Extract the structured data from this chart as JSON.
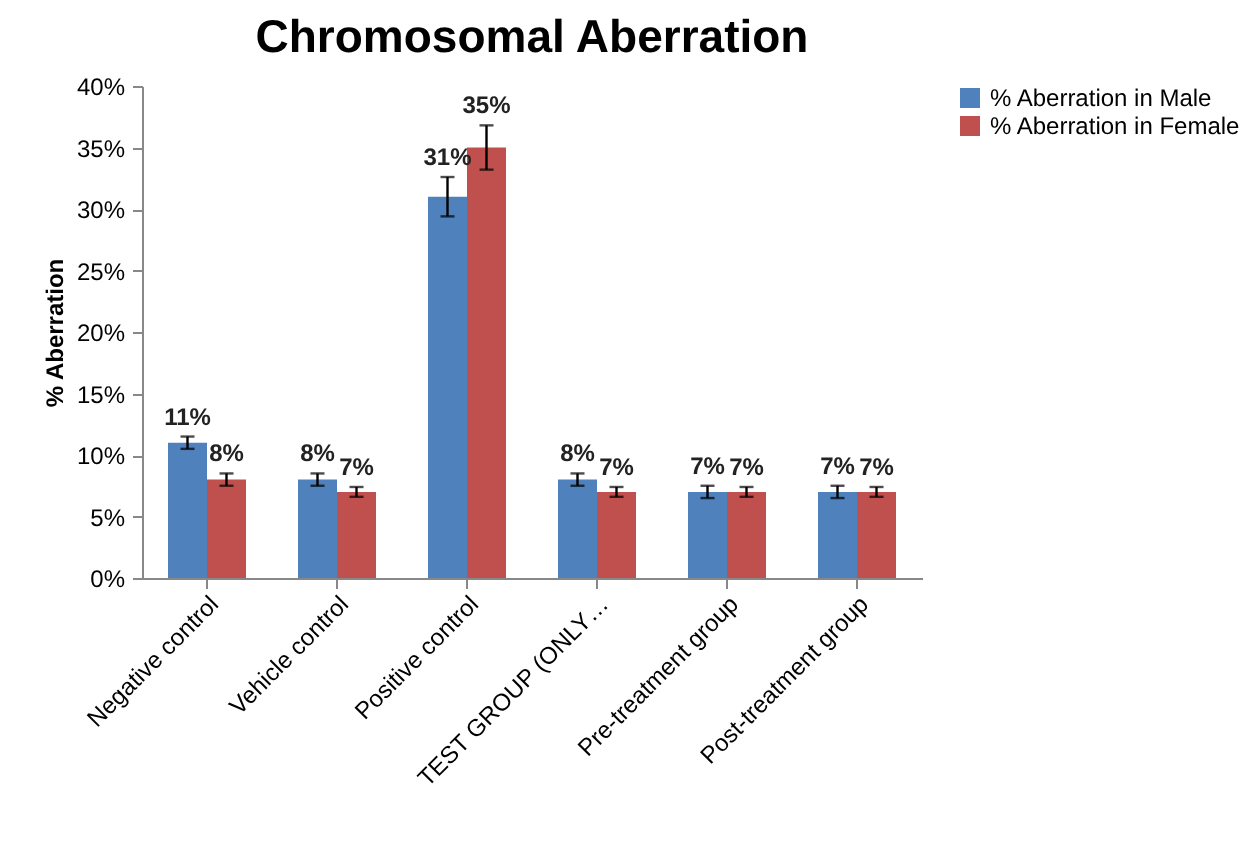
{
  "chart_data": {
    "type": "bar",
    "title": "Chromosomal Aberration",
    "ylabel": "% Aberration",
    "categories": [
      "Negative control",
      "Vehicle control",
      "Positive control",
      "TEST GROUP (ONLY…",
      "Pre-treatment group",
      "Post-treatment group"
    ],
    "series": [
      {
        "name": "% Aberration in Male",
        "color": "#4f81bd",
        "values": [
          11,
          8,
          31,
          8,
          7,
          7
        ],
        "errors": [
          0.5,
          0.5,
          1.6,
          0.5,
          0.5,
          0.5
        ],
        "value_labels": [
          "11%",
          "8%",
          "31%",
          "8%",
          "7%",
          "7%"
        ]
      },
      {
        "name": "% Aberration in Female",
        "color": "#c0504d",
        "values": [
          8,
          7,
          35,
          7,
          7,
          7
        ],
        "errors": [
          0.5,
          0.4,
          1.8,
          0.4,
          0.4,
          0.4
        ],
        "value_labels": [
          "8%",
          "7%",
          "35%",
          "7%",
          "7%",
          "7%"
        ]
      }
    ],
    "ylim": [
      0,
      40
    ],
    "yticks": [
      {
        "value": 0,
        "label": "0%"
      },
      {
        "value": 5,
        "label": "5%"
      },
      {
        "value": 10,
        "label": "10%"
      },
      {
        "value": 15,
        "label": "15%"
      },
      {
        "value": 20,
        "label": "20%"
      },
      {
        "value": 25,
        "label": "25%"
      },
      {
        "value": 30,
        "label": "30%"
      },
      {
        "value": 35,
        "label": "35%"
      },
      {
        "value": 40,
        "label": "40%"
      }
    ],
    "grid": false,
    "legend": "right"
  }
}
